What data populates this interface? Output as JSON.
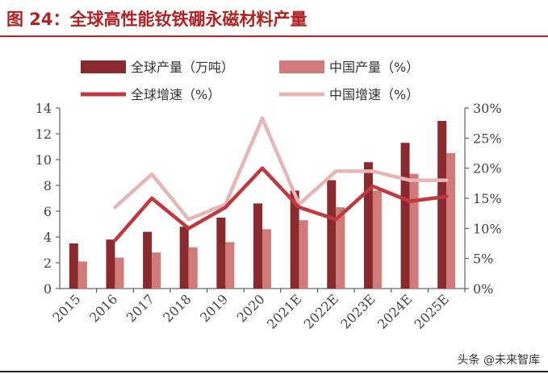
{
  "header": {
    "title": "图 24：全球高性能钕铁硼永磁材料产量"
  },
  "watermark": {
    "text": "头条 @未来智库"
  },
  "colors": {
    "title": "#b22222",
    "global_output_bar": "#8b2a2e",
    "china_output_bar": "#d07a7a",
    "global_growth_line": "#c0393e",
    "china_growth_line": "#e6b5b5"
  },
  "chart_data": {
    "type": "bar",
    "title": "全球高性能钕铁硼永磁材料产量",
    "categories": [
      "2015",
      "2016",
      "2017",
      "2018",
      "2019",
      "2020",
      "2021E",
      "2022E",
      "2023E",
      "2024E",
      "2025E"
    ],
    "series": [
      {
        "name": "全球产量（万吨）",
        "kind": "bar",
        "axis": "left",
        "values": [
          3.5,
          3.8,
          4.4,
          4.8,
          5.5,
          6.6,
          7.6,
          8.4,
          9.8,
          11.3,
          13.0
        ]
      },
      {
        "name": "中国产量（%）",
        "kind": "bar",
        "axis": "left",
        "values": [
          2.1,
          2.4,
          2.8,
          3.2,
          3.6,
          4.6,
          5.3,
          6.3,
          7.6,
          8.9,
          10.5
        ]
      },
      {
        "name": "全球增速（%）",
        "kind": "line",
        "axis": "right",
        "values": [
          null,
          8.0,
          15.0,
          10.0,
          13.5,
          20.0,
          13.5,
          11.5,
          17.0,
          14.5,
          15.3
        ]
      },
      {
        "name": "中国增速（%）",
        "kind": "line",
        "axis": "right",
        "values": [
          null,
          13.5,
          19.0,
          11.5,
          14.0,
          28.3,
          14.0,
          19.5,
          19.5,
          18.0,
          18.0
        ]
      }
    ],
    "y_left": {
      "min": 0,
      "max": 14,
      "ticks": [
        "0",
        "2",
        "4",
        "6",
        "8",
        "10",
        "12",
        "14"
      ]
    },
    "y_right": {
      "min": 0,
      "max": 30,
      "ticks": [
        "0%",
        "5%",
        "10%",
        "15%",
        "20%",
        "25%",
        "30%"
      ]
    },
    "legend_placement": "top",
    "grid": false
  }
}
